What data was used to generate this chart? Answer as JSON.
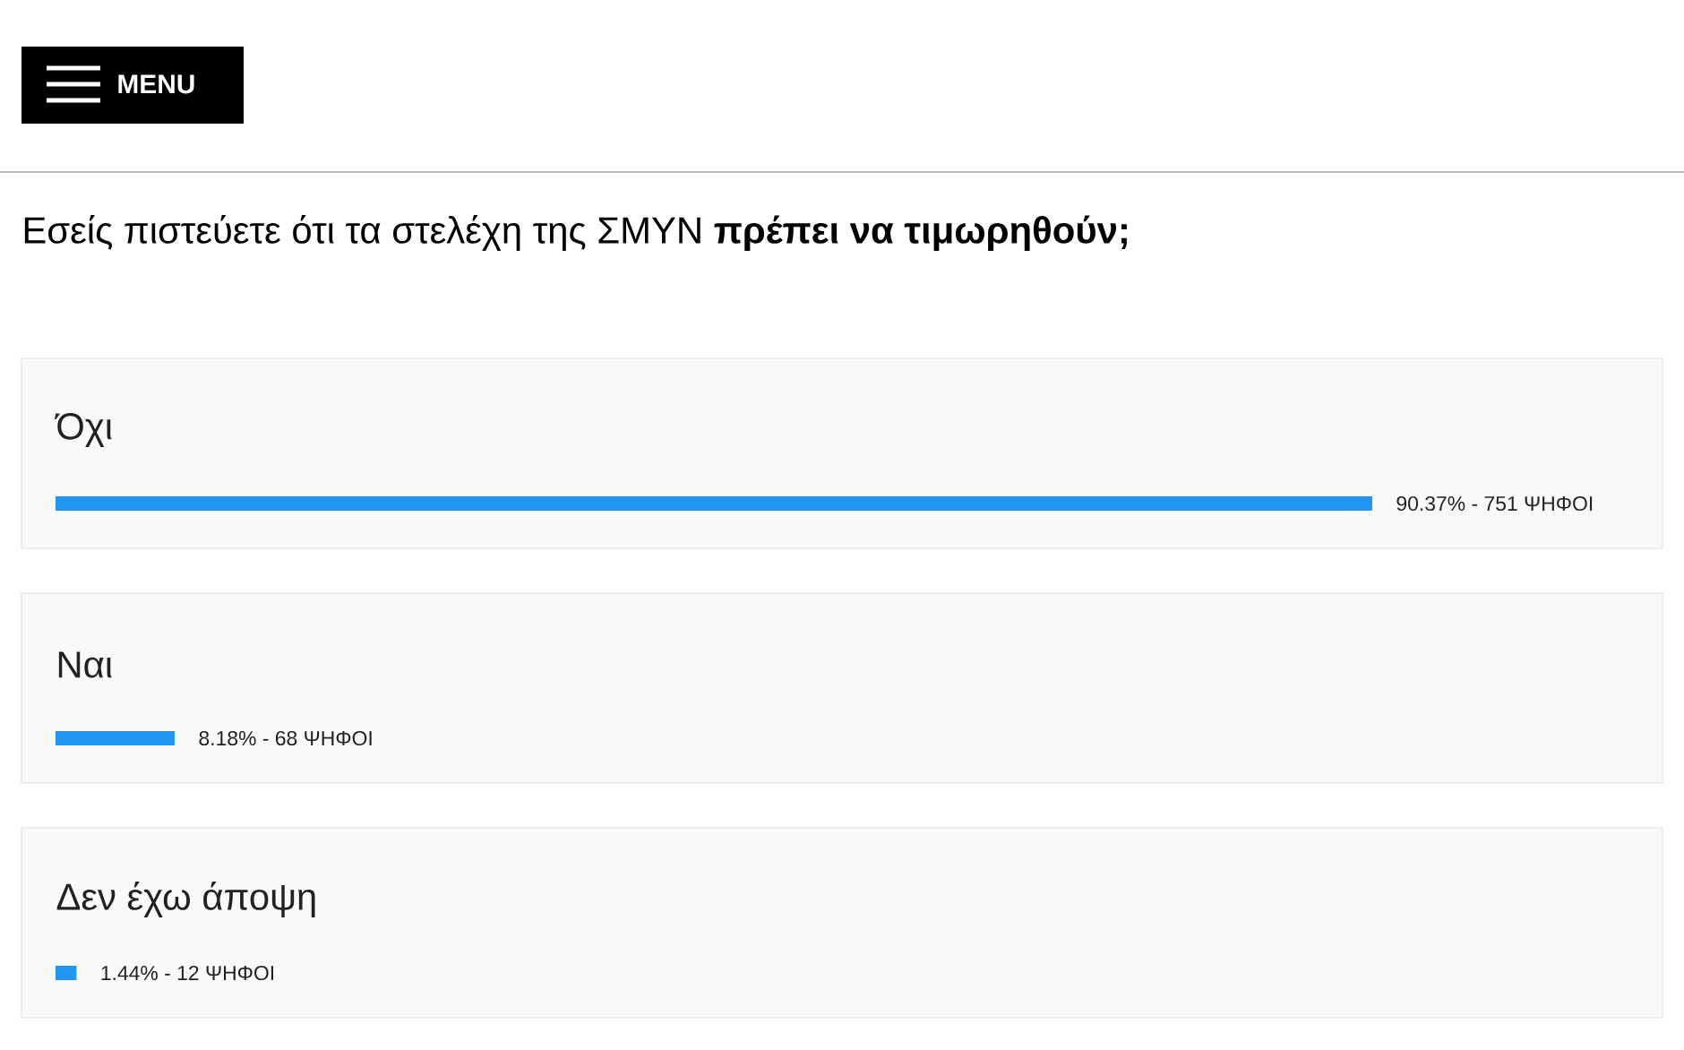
{
  "chart_data": {
    "type": "bar",
    "orientation": "horizontal",
    "title": "Εσείς πιστεύετε ότι τα στελέχη της ΣΜΥΝ **πρέπει να τιμωρηθούν;**",
    "categories": [
      "Όχι",
      "Ναι",
      "Δεν έχω άποψη"
    ],
    "values": [
      90.37,
      8.18,
      1.44
    ],
    "value_labels": [
      "90.37% - 751 ΨΗΦΟΙ",
      "8.18% - 68 ΨΗΦΟΙ",
      "1.44% - 12 ΨΗΦΟΙ"
    ],
    "color": "#2196f3",
    "tick_labels": false,
    "annotations": [
      "MENU"
    ]
  }
}
